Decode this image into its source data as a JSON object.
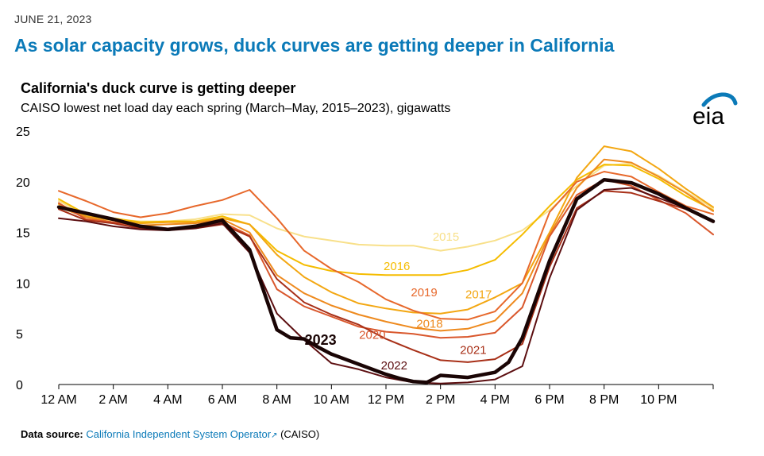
{
  "date": "JUNE 21, 2023",
  "headline": "As solar capacity grows, duck curves are getting deeper in California",
  "logo_text": "eia",
  "source": {
    "label": "Data source:",
    "link_text": "California Independent System Operator",
    "suffix": "(CAISO)"
  },
  "chart_data": {
    "type": "line",
    "title": "California's duck curve is getting deeper",
    "subtitle": "CAISO lowest net load day each spring (March–May, 2015–2023), gigawatts",
    "xlabel": "",
    "ylabel": "",
    "xlim": [
      0,
      24
    ],
    "ylim": [
      0,
      25
    ],
    "grid": false,
    "x_ticks": [
      {
        "value": 0,
        "label": "12 AM"
      },
      {
        "value": 2,
        "label": "2 AM"
      },
      {
        "value": 4,
        "label": "4 AM"
      },
      {
        "value": 6,
        "label": "6 AM"
      },
      {
        "value": 8,
        "label": "8 AM"
      },
      {
        "value": 10,
        "label": "10 AM"
      },
      {
        "value": 12,
        "label": "12 PM"
      },
      {
        "value": 14,
        "label": "2 PM"
      },
      {
        "value": 16,
        "label": "4 PM"
      },
      {
        "value": 18,
        "label": "6 PM"
      },
      {
        "value": 20,
        "label": "8 PM"
      },
      {
        "value": 22,
        "label": "10 PM"
      }
    ],
    "y_ticks": [
      0,
      5,
      10,
      15,
      20,
      25
    ],
    "series": [
      {
        "name": "2015",
        "color": "#f8e08a",
        "width": 2,
        "label": {
          "x": 14.2,
          "y": 14.2
        },
        "points": [
          [
            0,
            18.1
          ],
          [
            1,
            16.7
          ],
          [
            2,
            16.3
          ],
          [
            3,
            16.1
          ],
          [
            4,
            16.1
          ],
          [
            5,
            16.3
          ],
          [
            6,
            16.8
          ],
          [
            7,
            16.7
          ],
          [
            8,
            15.4
          ],
          [
            9,
            14.6
          ],
          [
            10,
            14.2
          ],
          [
            11,
            13.8
          ],
          [
            12,
            13.7
          ],
          [
            13,
            13.7
          ],
          [
            14,
            13.2
          ],
          [
            15,
            13.6
          ],
          [
            16,
            14.2
          ],
          [
            17,
            15.2
          ],
          [
            18,
            17.2
          ],
          [
            19,
            19.6
          ],
          [
            20,
            21.6
          ],
          [
            21,
            21.8
          ],
          [
            22,
            20.6
          ],
          [
            23,
            19.0
          ],
          [
            24,
            17.4
          ]
        ]
      },
      {
        "name": "2016",
        "color": "#f5bc00",
        "width": 2,
        "label": {
          "x": 12.4,
          "y": 11.3
        },
        "points": [
          [
            0,
            18.3
          ],
          [
            1,
            16.8
          ],
          [
            2,
            16.4
          ],
          [
            3,
            16.0
          ],
          [
            4,
            16.1
          ],
          [
            5,
            16.1
          ],
          [
            6,
            16.6
          ],
          [
            7,
            15.8
          ],
          [
            8,
            13.2
          ],
          [
            9,
            11.8
          ],
          [
            10,
            11.2
          ],
          [
            11,
            10.9
          ],
          [
            12,
            10.8
          ],
          [
            13,
            10.8
          ],
          [
            14,
            10.8
          ],
          [
            15,
            11.3
          ],
          [
            16,
            12.3
          ],
          [
            17,
            14.8
          ],
          [
            18,
            17.6
          ],
          [
            19,
            20.2
          ],
          [
            20,
            21.7
          ],
          [
            21,
            21.6
          ],
          [
            22,
            20.3
          ],
          [
            23,
            18.6
          ],
          [
            24,
            17.2
          ]
        ]
      },
      {
        "name": "2017",
        "color": "#f3a712",
        "width": 2,
        "label": {
          "x": 15.4,
          "y": 8.5
        },
        "points": [
          [
            0,
            17.8
          ],
          [
            1,
            16.6
          ],
          [
            2,
            16.2
          ],
          [
            3,
            15.9
          ],
          [
            4,
            16.0
          ],
          [
            5,
            16.0
          ],
          [
            6,
            16.4
          ],
          [
            7,
            15.8
          ],
          [
            8,
            12.8
          ],
          [
            9,
            10.6
          ],
          [
            10,
            9.1
          ],
          [
            11,
            8.0
          ],
          [
            12,
            7.5
          ],
          [
            13,
            7.1
          ],
          [
            14,
            7.0
          ],
          [
            15,
            7.4
          ],
          [
            16,
            8.6
          ],
          [
            17,
            10.0
          ],
          [
            18,
            15.0
          ],
          [
            19,
            20.4
          ],
          [
            20,
            23.5
          ],
          [
            21,
            23.0
          ],
          [
            22,
            21.3
          ],
          [
            23,
            19.3
          ],
          [
            24,
            17.5
          ]
        ]
      },
      {
        "name": "2018",
        "color": "#ee8a1e",
        "width": 2,
        "label": {
          "x": 13.6,
          "y": 5.6
        },
        "points": [
          [
            0,
            17.5
          ],
          [
            1,
            16.5
          ],
          [
            2,
            16.0
          ],
          [
            3,
            15.7
          ],
          [
            4,
            15.8
          ],
          [
            5,
            15.9
          ],
          [
            6,
            16.3
          ],
          [
            7,
            15.0
          ],
          [
            8,
            10.8
          ],
          [
            9,
            9.0
          ],
          [
            10,
            7.8
          ],
          [
            11,
            6.9
          ],
          [
            12,
            6.2
          ],
          [
            13,
            5.6
          ],
          [
            14,
            5.3
          ],
          [
            15,
            5.5
          ],
          [
            16,
            6.3
          ],
          [
            17,
            9.0
          ],
          [
            18,
            14.8
          ],
          [
            19,
            19.4
          ],
          [
            20,
            22.2
          ],
          [
            21,
            21.9
          ],
          [
            22,
            20.5
          ],
          [
            23,
            18.9
          ],
          [
            24,
            17.1
          ]
        ]
      },
      {
        "name": "2019",
        "color": "#e7682b",
        "width": 2,
        "label": {
          "x": 13.4,
          "y": 8.7
        },
        "points": [
          [
            0,
            19.1
          ],
          [
            1,
            18.1
          ],
          [
            2,
            17.0
          ],
          [
            3,
            16.5
          ],
          [
            4,
            16.9
          ],
          [
            5,
            17.6
          ],
          [
            6,
            18.2
          ],
          [
            7,
            19.2
          ],
          [
            8,
            16.4
          ],
          [
            9,
            13.2
          ],
          [
            10,
            11.4
          ],
          [
            11,
            10.1
          ],
          [
            12,
            8.4
          ],
          [
            13,
            7.3
          ],
          [
            14,
            6.5
          ],
          [
            15,
            6.4
          ],
          [
            16,
            7.2
          ],
          [
            17,
            10.0
          ],
          [
            18,
            17.0
          ],
          [
            19,
            20.0
          ],
          [
            20,
            21.0
          ],
          [
            21,
            20.5
          ],
          [
            22,
            19.0
          ],
          [
            23,
            17.6
          ],
          [
            24,
            16.8
          ]
        ]
      },
      {
        "name": "2020",
        "color": "#d9572c",
        "width": 2,
        "label": {
          "x": 11.5,
          "y": 4.5
        },
        "points": [
          [
            0,
            17.9
          ],
          [
            1,
            16.3
          ],
          [
            2,
            16.0
          ],
          [
            3,
            15.6
          ],
          [
            4,
            15.4
          ],
          [
            5,
            15.6
          ],
          [
            6,
            16.0
          ],
          [
            7,
            14.7
          ],
          [
            8,
            9.4
          ],
          [
            9,
            7.7
          ],
          [
            10,
            6.7
          ],
          [
            11,
            5.7
          ],
          [
            12,
            5.2
          ],
          [
            13,
            5.0
          ],
          [
            14,
            4.6
          ],
          [
            15,
            4.7
          ],
          [
            16,
            5.1
          ],
          [
            17,
            7.6
          ],
          [
            18,
            14.6
          ],
          [
            19,
            18.7
          ],
          [
            20,
            20.2
          ],
          [
            21,
            19.6
          ],
          [
            22,
            18.2
          ],
          [
            23,
            16.9
          ],
          [
            24,
            14.8
          ]
        ]
      },
      {
        "name": "2021",
        "color": "#a83018",
        "width": 2,
        "label": {
          "x": 15.2,
          "y": 3.0
        },
        "points": [
          [
            0,
            17.3
          ],
          [
            1,
            16.2
          ],
          [
            2,
            15.9
          ],
          [
            3,
            15.4
          ],
          [
            4,
            15.3
          ],
          [
            5,
            15.4
          ],
          [
            6,
            15.8
          ],
          [
            7,
            14.6
          ],
          [
            8,
            10.4
          ],
          [
            9,
            8.1
          ],
          [
            10,
            6.9
          ],
          [
            11,
            5.9
          ],
          [
            12,
            4.5
          ],
          [
            13,
            3.4
          ],
          [
            14,
            2.4
          ],
          [
            15,
            2.2
          ],
          [
            16,
            2.5
          ],
          [
            17,
            4.0
          ],
          [
            18,
            11.6
          ],
          [
            19,
            17.4
          ],
          [
            20,
            19.1
          ],
          [
            21,
            18.9
          ],
          [
            22,
            18.1
          ],
          [
            23,
            17.3
          ],
          [
            24,
            16.0
          ]
        ]
      },
      {
        "name": "2022",
        "color": "#5c0e10",
        "width": 2,
        "label": {
          "x": 12.3,
          "y": 1.5
        },
        "points": [
          [
            0,
            16.4
          ],
          [
            1,
            16.1
          ],
          [
            2,
            15.6
          ],
          [
            3,
            15.3
          ],
          [
            4,
            15.2
          ],
          [
            5,
            15.4
          ],
          [
            6,
            15.9
          ],
          [
            7,
            13.0
          ],
          [
            8,
            7.0
          ],
          [
            9,
            4.4
          ],
          [
            10,
            2.1
          ],
          [
            11,
            1.5
          ],
          [
            12,
            0.7
          ],
          [
            13,
            0.2
          ],
          [
            14,
            0.1
          ],
          [
            15,
            0.2
          ],
          [
            16,
            0.5
          ],
          [
            17,
            1.8
          ],
          [
            18,
            10.5
          ],
          [
            19,
            17.2
          ],
          [
            20,
            19.2
          ],
          [
            21,
            19.4
          ],
          [
            22,
            18.4
          ],
          [
            23,
            17.4
          ],
          [
            24,
            16.1
          ]
        ]
      },
      {
        "name": "2023",
        "color": "#1a0505",
        "width": 4.5,
        "label": {
          "x": 9.6,
          "y": 3.9
        },
        "bold": true,
        "points": [
          [
            0,
            17.5
          ],
          [
            1,
            16.9
          ],
          [
            2,
            16.3
          ],
          [
            3,
            15.6
          ],
          [
            4,
            15.3
          ],
          [
            5,
            15.6
          ],
          [
            6,
            16.2
          ],
          [
            7,
            13.3
          ],
          [
            8,
            5.4
          ],
          [
            8.5,
            4.6
          ],
          [
            9,
            4.5
          ],
          [
            9.5,
            3.7
          ],
          [
            10,
            3.0
          ],
          [
            11,
            2.0
          ],
          [
            12,
            1.0
          ],
          [
            12.5,
            0.6
          ],
          [
            13,
            0.3
          ],
          [
            13.5,
            0.2
          ],
          [
            14,
            0.9
          ],
          [
            15,
            0.7
          ],
          [
            16,
            1.2
          ],
          [
            16.5,
            2.2
          ],
          [
            17,
            4.6
          ],
          [
            18,
            12.2
          ],
          [
            19,
            18.3
          ],
          [
            20,
            20.2
          ],
          [
            21,
            19.9
          ],
          [
            22,
            18.8
          ],
          [
            23,
            17.4
          ],
          [
            24,
            16.1
          ]
        ]
      }
    ]
  }
}
